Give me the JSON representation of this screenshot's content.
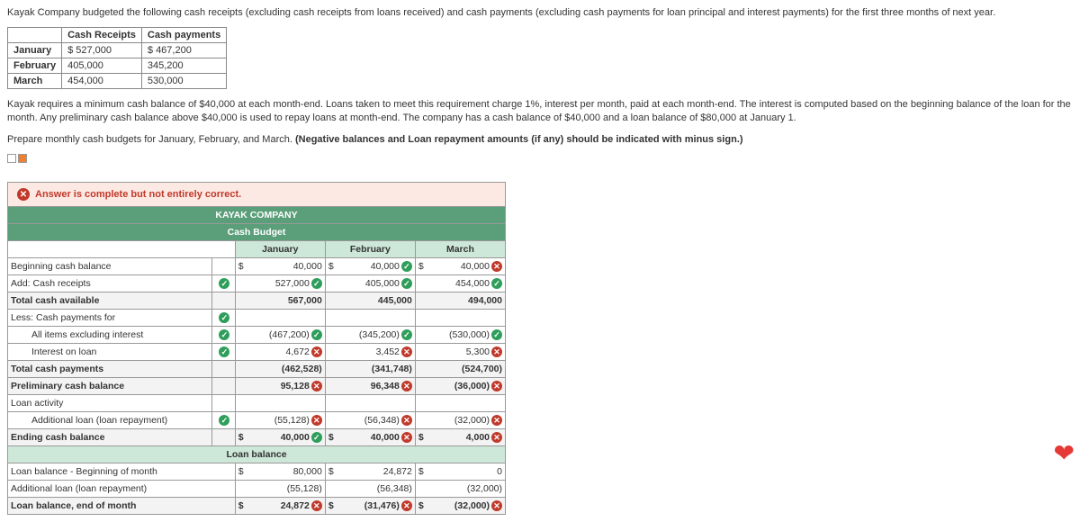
{
  "intro": "Kayak Company budgeted the following cash receipts (excluding cash receipts from loans received) and cash payments (excluding cash payments for loan principal and interest payments) for the first three months of next year.",
  "input_table": {
    "headers": [
      "",
      "Cash Receipts",
      "Cash payments"
    ],
    "rows": [
      [
        "January",
        "$ 527,000",
        "$ 467,200"
      ],
      [
        "February",
        "405,000",
        "345,200"
      ],
      [
        "March",
        "454,000",
        "530,000"
      ]
    ]
  },
  "para2": "Kayak requires a minimum cash balance of $40,000 at each month-end. Loans taken to meet this requirement charge 1%, interest per month, paid at each month-end. The interest is computed based on the beginning balance of the loan for the month. Any preliminary cash balance above $40,000 is used to repay loans at month-end. The company has a cash balance of $40,000 and a loan balance of $80,000 at January 1.",
  "para3_a": "Prepare monthly cash budgets for January, February, and March. ",
  "para3_b": "(Negative balances and Loan repayment amounts (if any) should be indicated with minus sign.)",
  "banner": "Answer is complete but not entirely correct.",
  "company": "KAYAK COMPANY",
  "title": "Cash Budget",
  "months": [
    "January",
    "February",
    "March"
  ],
  "rows": [
    {
      "label": "Beginning cash balance",
      "mark": null,
      "v": [
        {
          "t": "40,000",
          "m": null,
          "c": "$"
        },
        {
          "t": "40,000",
          "m": "ok",
          "c": "$"
        },
        {
          "t": "40,000",
          "m": "bad",
          "c": "$"
        }
      ]
    },
    {
      "label": "Add: Cash receipts",
      "mark": "ok",
      "v": [
        {
          "t": "527,000",
          "m": "ok"
        },
        {
          "t": "405,000",
          "m": "ok"
        },
        {
          "t": "454,000",
          "m": "ok"
        }
      ]
    },
    {
      "label": "Total cash available",
      "mark": null,
      "shade": true,
      "v": [
        {
          "t": "567,000"
        },
        {
          "t": "445,000"
        },
        {
          "t": "494,000"
        }
      ]
    },
    {
      "label": "Less: Cash payments for",
      "mark": "ok",
      "v": [
        {
          "t": ""
        },
        {
          "t": ""
        },
        {
          "t": ""
        }
      ]
    },
    {
      "label": "All items excluding interest",
      "mark": "ok",
      "ind": 2,
      "v": [
        {
          "t": "(467,200)",
          "m": "ok"
        },
        {
          "t": "(345,200)",
          "m": "ok"
        },
        {
          "t": "(530,000)",
          "m": "ok"
        }
      ]
    },
    {
      "label": "Interest on loan",
      "mark": "ok",
      "ind": 2,
      "v": [
        {
          "t": "4,672",
          "m": "bad"
        },
        {
          "t": "3,452",
          "m": "bad"
        },
        {
          "t": "5,300",
          "m": "bad"
        }
      ]
    },
    {
      "label": "Total cash payments",
      "mark": null,
      "shade": true,
      "v": [
        {
          "t": "(462,528)"
        },
        {
          "t": "(341,748)"
        },
        {
          "t": "(524,700)"
        }
      ]
    },
    {
      "label": "Preliminary cash balance",
      "mark": null,
      "shade": true,
      "v": [
        {
          "t": "95,128",
          "m": "bad"
        },
        {
          "t": "96,348",
          "m": "bad"
        },
        {
          "t": "(36,000)",
          "m": "bad"
        }
      ]
    },
    {
      "label": "Loan activity",
      "mark": null,
      "v": [
        {
          "t": ""
        },
        {
          "t": ""
        },
        {
          "t": ""
        }
      ]
    },
    {
      "label": "Additional loan (loan repayment)",
      "mark": "ok",
      "ind": 2,
      "v": [
        {
          "t": "(55,128)",
          "m": "bad"
        },
        {
          "t": "(56,348)",
          "m": "bad"
        },
        {
          "t": "(32,000)",
          "m": "bad"
        }
      ]
    },
    {
      "label": "Ending cash balance",
      "mark": null,
      "shade": true,
      "v": [
        {
          "t": "40,000",
          "m": "ok",
          "c": "$"
        },
        {
          "t": "40,000",
          "m": "bad",
          "c": "$"
        },
        {
          "t": "4,000",
          "m": "bad",
          "c": "$"
        }
      ]
    }
  ],
  "loan_header": "Loan balance",
  "loan_rows": [
    {
      "label": "Loan balance - Beginning of month",
      "v": [
        {
          "t": "80,000",
          "c": "$"
        },
        {
          "t": "24,872",
          "c": "$"
        },
        {
          "t": "0",
          "c": "$"
        }
      ]
    },
    {
      "label": "Additional loan (loan repayment)",
      "v": [
        {
          "t": "(55,128)"
        },
        {
          "t": "(56,348)"
        },
        {
          "t": "(32,000)"
        }
      ]
    },
    {
      "label": "Loan balance, end of month",
      "shade": true,
      "v": [
        {
          "t": "24,872",
          "m": "bad",
          "c": "$"
        },
        {
          "t": "(31,476)",
          "m": "bad",
          "c": "$"
        },
        {
          "t": "(32,000)",
          "m": "bad",
          "c": "$"
        }
      ]
    }
  ]
}
